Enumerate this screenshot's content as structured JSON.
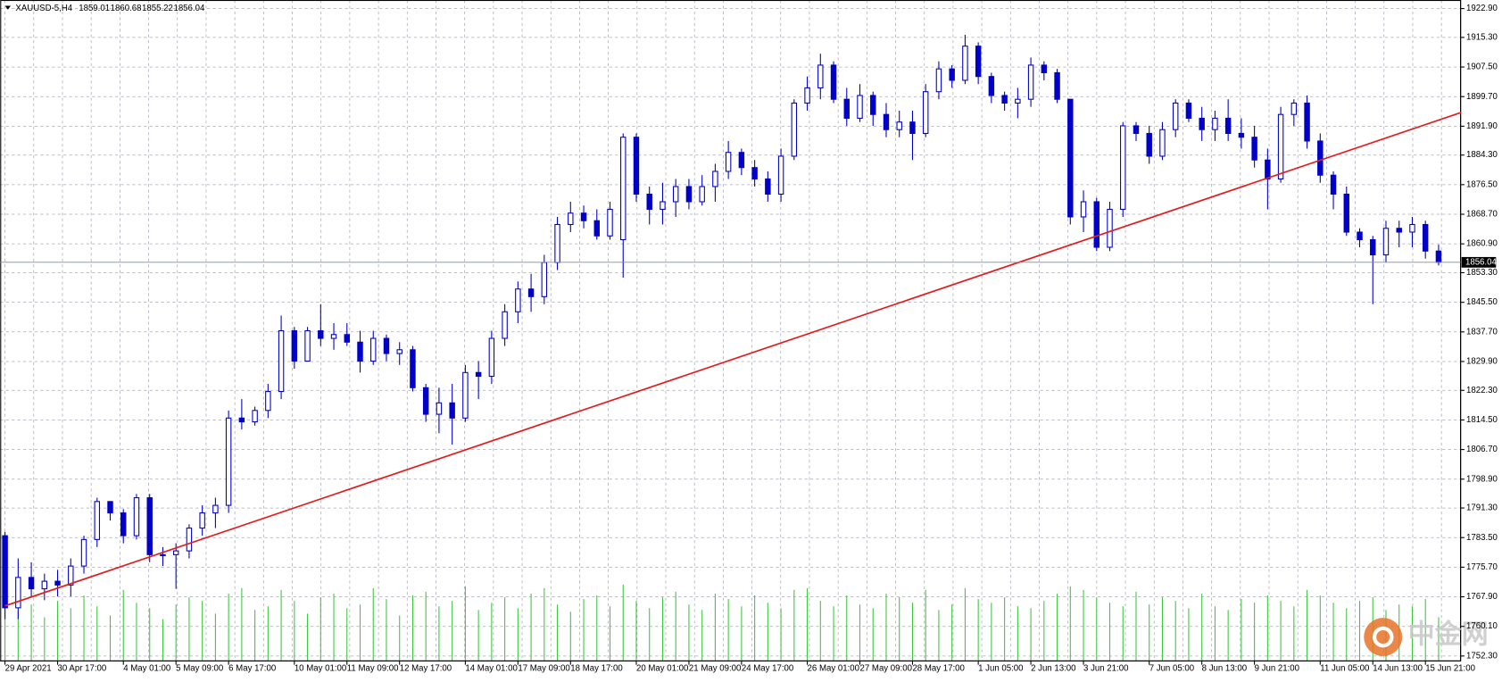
{
  "chart_data": {
    "type": "candlestick",
    "symbol": "XAUUSD-5,H4",
    "watermark": "中金网",
    "categories": [
      "29 Apr 2021",
      null,
      null,
      null,
      "30 Apr 17:00",
      null,
      null,
      null,
      null,
      "4 May 01:00",
      null,
      null,
      null,
      "5 May 09:00",
      null,
      null,
      null,
      "6 May 17:00",
      null,
      null,
      null,
      null,
      "10 May 01:00",
      null,
      null,
      null,
      "11 May 09:00",
      null,
      null,
      null,
      "12 May 17:00",
      null,
      null,
      null,
      null,
      "14 May 01:00",
      null,
      null,
      null,
      "17 May 09:00",
      null,
      null,
      null,
      "18 May 17:00",
      null,
      null,
      null,
      null,
      "20 May 01:00",
      null,
      null,
      null,
      "21 May 09:00",
      null,
      null,
      null,
      "24 May 17:00",
      null,
      null,
      null,
      null,
      "26 May 01:00",
      null,
      null,
      null,
      "27 May 09:00",
      null,
      null,
      null,
      "28 May 17:00",
      null,
      null,
      null,
      null,
      "1 Jun 05:00",
      null,
      null,
      null,
      "2 Jun 13:00",
      null,
      null,
      null,
      "3 Jun 21:00",
      null,
      null,
      null,
      null,
      "7 Jun 05:00",
      null,
      null,
      null,
      "8 Jun 13:00",
      null,
      null,
      null,
      "9 Jun 21:00",
      null,
      null,
      null,
      null,
      "11 Jun 05:00",
      null,
      null,
      null,
      "14 Jun 13:00",
      null,
      null,
      null,
      "15 Jun 21:00",
      null
    ],
    "open": [
      1784,
      1765,
      1773,
      1770,
      1772,
      1771,
      1776,
      1783,
      1793,
      1790,
      1784,
      1794,
      1779,
      1779,
      1780,
      1786,
      1790,
      1792,
      1815,
      1814,
      1817,
      1822,
      1838,
      1830,
      1838,
      1836,
      1837,
      1835,
      1830,
      1836,
      1832,
      1833,
      1823,
      1816,
      1819,
      1815,
      1827,
      1826,
      1836,
      1843,
      1849,
      1847,
      1856,
      1866,
      1869,
      1867,
      1863,
      1862,
      1889,
      1874,
      1870,
      1872,
      1876,
      1872,
      1876,
      1880,
      1885,
      1881,
      1878,
      1874,
      1884,
      1898,
      1902,
      1908,
      1899,
      1894,
      1900,
      1895,
      1891,
      1893,
      1890,
      1901,
      1907,
      1904,
      1913,
      1905,
      1900,
      1898,
      1899,
      1908,
      1906,
      1899,
      1868,
      1872,
      1860,
      1870,
      1892,
      1890,
      1884,
      1891,
      1898,
      1894,
      1891,
      1894,
      1890,
      1889,
      1883,
      1878,
      1895,
      1898,
      1888,
      1879,
      1874,
      1864,
      1862,
      1858,
      1865,
      1864,
      1866,
      1859.01
    ],
    "high": [
      1785,
      1778,
      1777,
      1774,
      1775,
      1778,
      1784,
      1794,
      1793,
      1791,
      1795,
      1795,
      1781,
      1782,
      1787,
      1792,
      1794,
      1817,
      1820,
      1818,
      1824,
      1842,
      1839,
      1839,
      1845,
      1840,
      1840,
      1838,
      1838,
      1837,
      1835,
      1834,
      1824,
      1823,
      1824,
      1829,
      1830,
      1838,
      1845,
      1851,
      1853,
      1858,
      1868,
      1872,
      1871,
      1870,
      1872,
      1890,
      1890,
      1876,
      1877,
      1878,
      1878,
      1879,
      1882,
      1888,
      1886,
      1883,
      1880,
      1886,
      1899,
      1905,
      1911,
      1909,
      1902,
      1903,
      1901,
      1898,
      1896,
      1896,
      1903,
      1909,
      1908,
      1916,
      1914,
      1906,
      1901,
      1902,
      1910,
      1909,
      1907,
      1899,
      1875,
      1873,
      1872,
      1893,
      1893,
      1892,
      1893,
      1899,
      1899,
      1897,
      1896,
      1899,
      1894,
      1892,
      1886,
      1897,
      1899,
      1900,
      1890,
      1880,
      1876,
      1865,
      1863,
      1867,
      1867,
      1868,
      1867,
      1860.68
    ],
    "low": [
      1762,
      1762,
      1768,
      1767,
      1768,
      1768,
      1774,
      1781,
      1788,
      1782,
      1783,
      1777,
      1776,
      1770,
      1778,
      1784,
      1786,
      1790,
      1812,
      1813,
      1815,
      1820,
      1828,
      1830,
      1834,
      1833,
      1834,
      1827,
      1829,
      1830,
      1829,
      1822,
      1814,
      1811,
      1808,
      1814,
      1820,
      1824,
      1834,
      1840,
      1843,
      1845,
      1854,
      1864,
      1865,
      1862,
      1862,
      1852,
      1872,
      1866,
      1866,
      1868,
      1870,
      1871,
      1872,
      1878,
      1879,
      1876,
      1872,
      1872,
      1883,
      1896,
      1899,
      1898,
      1892,
      1893,
      1892,
      1889,
      1889,
      1883,
      1889,
      1899,
      1902,
      1903,
      1903,
      1898,
      1896,
      1894,
      1897,
      1904,
      1898,
      1866,
      1864,
      1859,
      1859,
      1868,
      1888,
      1882,
      1883,
      1889,
      1893,
      1888,
      1888,
      1888,
      1886,
      1881,
      1870,
      1877,
      1892,
      1886,
      1877,
      1870,
      1863,
      1860,
      1845,
      1856,
      1860,
      1860,
      1857,
      1855.22
    ],
    "close": [
      1765,
      1773,
      1770,
      1772,
      1771,
      1776,
      1783,
      1793,
      1790,
      1784,
      1794,
      1779,
      1779,
      1780,
      1786,
      1790,
      1792,
      1815,
      1814,
      1817,
      1822,
      1838,
      1830,
      1838,
      1836,
      1837,
      1835,
      1830,
      1836,
      1832,
      1833,
      1823,
      1816,
      1819,
      1815,
      1827,
      1826,
      1836,
      1843,
      1849,
      1847,
      1856,
      1866,
      1869,
      1867,
      1863,
      1870,
      1889,
      1874,
      1870,
      1872,
      1876,
      1872,
      1876,
      1880,
      1885,
      1881,
      1878,
      1874,
      1884,
      1898,
      1902,
      1908,
      1899,
      1894,
      1900,
      1895,
      1891,
      1893,
      1890,
      1901,
      1907,
      1904,
      1913,
      1905,
      1900,
      1898,
      1899,
      1908,
      1906,
      1899,
      1868,
      1872,
      1860,
      1870,
      1892,
      1890,
      1884,
      1891,
      1898,
      1894,
      1891,
      1894,
      1890,
      1889,
      1883,
      1878,
      1895,
      1898,
      1888,
      1879,
      1874,
      1864,
      1862,
      1858,
      1865,
      1864,
      1866,
      1859,
      1856.04
    ],
    "volume": [
      70,
      55,
      62,
      48,
      66,
      58,
      72,
      60,
      50,
      78,
      64,
      58,
      46,
      62,
      70,
      66,
      52,
      74,
      80,
      56,
      60,
      78,
      66,
      52,
      70,
      74,
      58,
      62,
      80,
      68,
      50,
      72,
      76,
      60,
      66,
      82,
      56,
      64,
      70,
      58,
      74,
      80,
      62,
      54,
      68,
      72,
      60,
      84,
      66,
      58,
      70,
      76,
      62,
      56,
      74,
      68,
      60,
      72,
      64,
      58,
      78,
      80,
      66,
      60,
      72,
      62,
      58,
      74,
      70,
      64,
      78,
      56,
      62,
      80,
      68,
      64,
      70,
      60,
      58,
      66,
      74,
      82,
      78,
      70,
      64,
      60,
      76,
      62,
      70,
      66,
      58,
      74,
      60,
      56,
      68,
      64,
      72,
      66,
      60,
      78,
      72,
      64,
      58,
      66,
      70,
      56,
      62,
      60,
      68,
      48
    ],
    "candle_color": "#0000c8",
    "volume_color": "#3cc83c",
    "trendline": {
      "color": "#e02020",
      "x": [
        0,
        110.7
      ],
      "values": [
        1765.5,
        1895.5
      ]
    },
    "ylim": [
      1751.0,
      1924.4
    ],
    "yticks": [
      {
        "value": 1922.9,
        "label": "1922.90"
      },
      {
        "value": 1915.3,
        "label": "1915.30"
      },
      {
        "value": 1907.5,
        "label": "1907.50"
      },
      {
        "value": 1899.7,
        "label": "1899.70"
      },
      {
        "value": 1891.9,
        "label": "1891.90"
      },
      {
        "value": 1884.3,
        "label": "1884.30"
      },
      {
        "value": 1876.5,
        "label": "1876.50"
      },
      {
        "value": 1868.7,
        "label": "1868.70"
      },
      {
        "value": 1860.9,
        "label": "1860.90"
      },
      {
        "value": 1853.3,
        "label": "1853.30"
      },
      {
        "value": 1845.5,
        "label": "1845.50"
      },
      {
        "value": 1837.7,
        "label": "1837.70"
      },
      {
        "value": 1829.9,
        "label": "1829.90"
      },
      {
        "value": 1822.3,
        "label": "1822.30"
      },
      {
        "value": 1814.5,
        "label": "1814.50"
      },
      {
        "value": 1806.7,
        "label": "1806.70"
      },
      {
        "value": 1798.9,
        "label": "1798.90"
      },
      {
        "value": 1791.3,
        "label": "1791.30"
      },
      {
        "value": 1783.5,
        "label": "1783.50"
      },
      {
        "value": 1775.7,
        "label": "1775.70"
      },
      {
        "value": 1767.9,
        "label": "1767.90"
      },
      {
        "value": 1760.1,
        "label": "1760.10"
      },
      {
        "value": 1752.3,
        "label": "1752.30"
      }
    ],
    "grid": true
  }
}
